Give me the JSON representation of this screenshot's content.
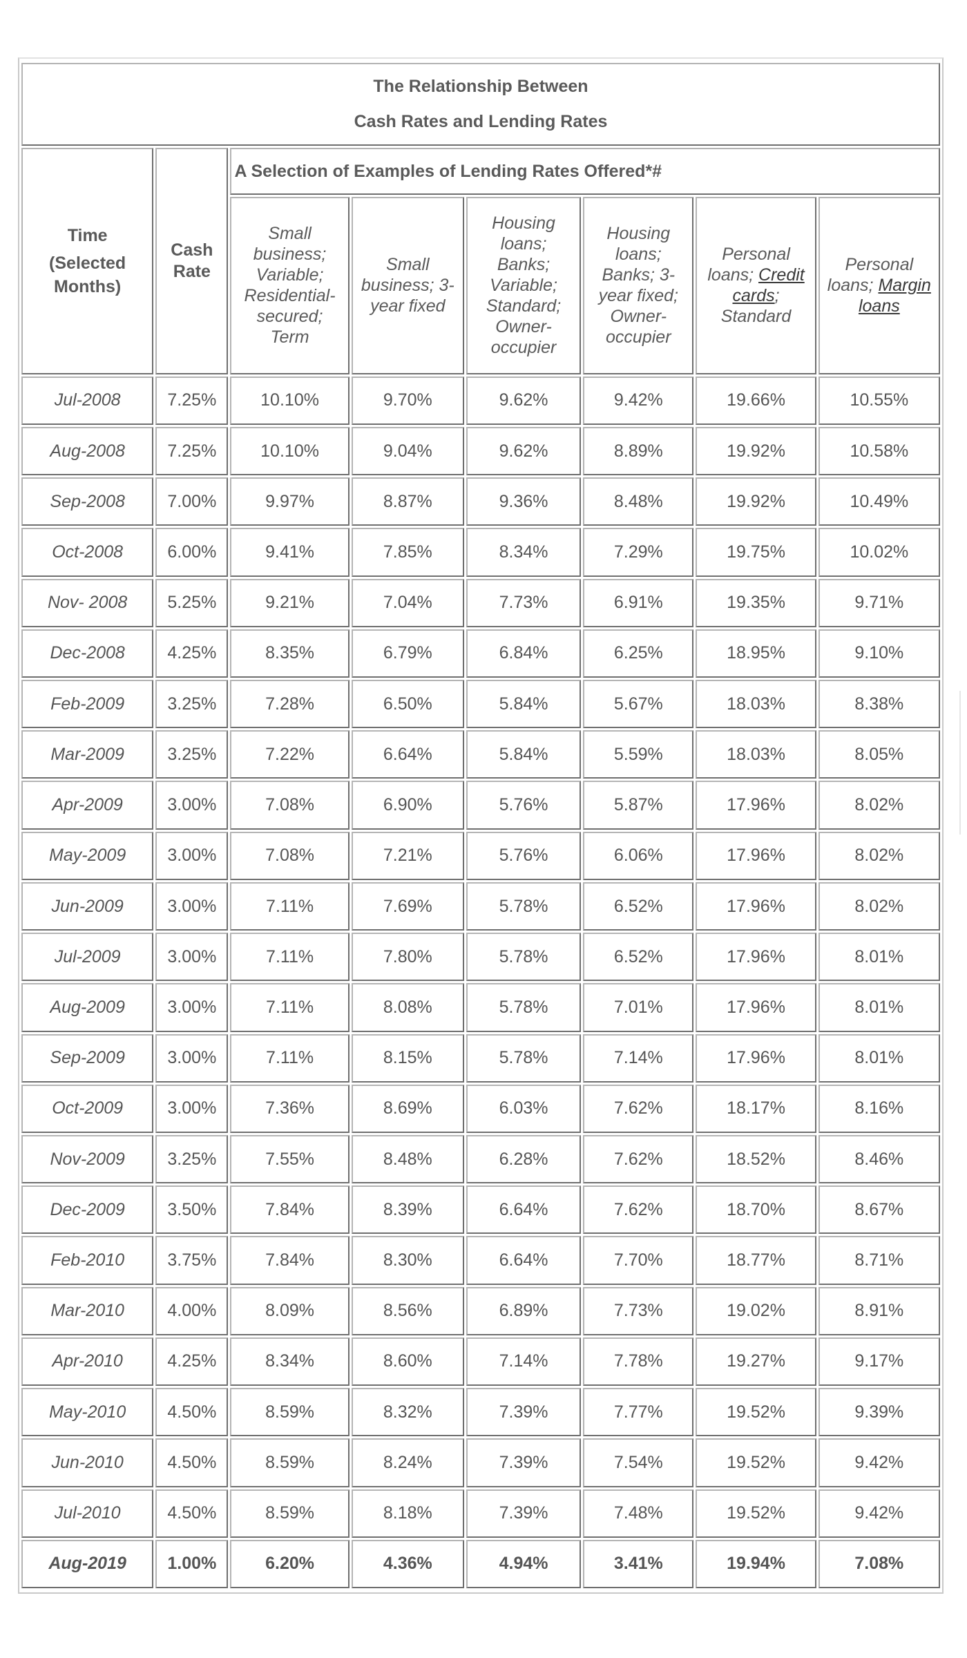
{
  "table": {
    "title_line1": "The Relationship Between",
    "title_line2": "Cash Rates and Lending Rates",
    "time_head": {
      "line1": "Time",
      "line2": "(Selected",
      "line3": "Months)"
    },
    "cash_head": {
      "line1": "Cash",
      "line2": "Rate"
    },
    "group_header": "A Selection of Examples of Lending Rates Offered*#",
    "columns": {
      "c1": [
        "Small",
        "business;",
        "Variable;",
        "Residential-",
        "secured;",
        "Term"
      ],
      "c2": [
        "Small",
        "business; 3-",
        "year fixed"
      ],
      "c3": [
        "Housing",
        "loans;",
        "Banks;",
        "Variable;",
        "Standard;",
        "Owner-",
        "occupier"
      ],
      "c4": [
        "Housing",
        "loans;",
        "Banks; 3-",
        "year fixed;",
        "Owner-",
        "occupier"
      ],
      "c5": {
        "line1": "Personal",
        "line2_prefix": "loans; ",
        "link1": "Credit",
        "link2": "cards",
        "line3_suffix": ";",
        "line4": "Standard"
      },
      "c6": {
        "line1": "Personal",
        "line2_prefix": "loans; ",
        "link1": "Margin",
        "link2": "loans"
      }
    },
    "rows": [
      {
        "month": "Jul-2008",
        "cash": "7.25%",
        "v": [
          "10.10%",
          "9.70%",
          "9.62%",
          "9.42%",
          "19.66%",
          "10.55%"
        ]
      },
      {
        "month": "Aug-2008",
        "cash": "7.25%",
        "v": [
          "10.10%",
          "9.04%",
          "9.62%",
          "8.89%",
          "19.92%",
          "10.58%"
        ]
      },
      {
        "month": "Sep-2008",
        "cash": "7.00%",
        "v": [
          "9.97%",
          "8.87%",
          "9.36%",
          "8.48%",
          "19.92%",
          "10.49%"
        ]
      },
      {
        "month": "Oct-2008",
        "cash": "6.00%",
        "v": [
          "9.41%",
          "7.85%",
          "8.34%",
          "7.29%",
          "19.75%",
          "10.02%"
        ]
      },
      {
        "month": "Nov- 2008",
        "cash": "5.25%",
        "v": [
          "9.21%",
          "7.04%",
          "7.73%",
          "6.91%",
          "19.35%",
          "9.71%"
        ]
      },
      {
        "month": "Dec-2008",
        "cash": "4.25%",
        "v": [
          "8.35%",
          "6.79%",
          "6.84%",
          "6.25%",
          "18.95%",
          "9.10%"
        ]
      },
      {
        "month": "Feb-2009",
        "cash": "3.25%",
        "v": [
          "7.28%",
          "6.50%",
          "5.84%",
          "5.67%",
          "18.03%",
          "8.38%"
        ]
      },
      {
        "month": "Mar-2009",
        "cash": "3.25%",
        "v": [
          "7.22%",
          "6.64%",
          "5.84%",
          "5.59%",
          "18.03%",
          "8.05%"
        ]
      },
      {
        "month": "Apr-2009",
        "cash": "3.00%",
        "v": [
          "7.08%",
          "6.90%",
          "5.76%",
          "5.87%",
          "17.96%",
          "8.02%"
        ]
      },
      {
        "month": "May-2009",
        "cash": "3.00%",
        "v": [
          "7.08%",
          "7.21%",
          "5.76%",
          "6.06%",
          "17.96%",
          "8.02%"
        ]
      },
      {
        "month": "Jun-2009",
        "cash": "3.00%",
        "v": [
          "7.11%",
          "7.69%",
          "5.78%",
          "6.52%",
          "17.96%",
          "8.02%"
        ]
      },
      {
        "month": "Jul-2009",
        "cash": "3.00%",
        "v": [
          "7.11%",
          "7.80%",
          "5.78%",
          "6.52%",
          "17.96%",
          "8.01%"
        ]
      },
      {
        "month": "Aug-2009",
        "cash": "3.00%",
        "v": [
          "7.11%",
          "8.08%",
          "5.78%",
          "7.01%",
          "17.96%",
          "8.01%"
        ]
      },
      {
        "month": "Sep-2009",
        "cash": "3.00%",
        "v": [
          "7.11%",
          "8.15%",
          "5.78%",
          "7.14%",
          "17.96%",
          "8.01%"
        ]
      },
      {
        "month": "Oct-2009",
        "cash": "3.00%",
        "v": [
          "7.36%",
          "8.69%",
          "6.03%",
          "7.62%",
          "18.17%",
          "8.16%"
        ]
      },
      {
        "month": "Nov-2009",
        "cash": "3.25%",
        "v": [
          "7.55%",
          "8.48%",
          "6.28%",
          "7.62%",
          "18.52%",
          "8.46%"
        ]
      },
      {
        "month": "Dec-2009",
        "cash": "3.50%",
        "v": [
          "7.84%",
          "8.39%",
          "6.64%",
          "7.62%",
          "18.70%",
          "8.67%"
        ]
      },
      {
        "month": "Feb-2010",
        "cash": "3.75%",
        "v": [
          "7.84%",
          "8.30%",
          "6.64%",
          "7.70%",
          "18.77%",
          "8.71%"
        ]
      },
      {
        "month": "Mar-2010",
        "cash": "4.00%",
        "v": [
          "8.09%",
          "8.56%",
          "6.89%",
          "7.73%",
          "19.02%",
          "8.91%"
        ]
      },
      {
        "month": "Apr-2010",
        "cash": "4.25%",
        "v": [
          "8.34%",
          "8.60%",
          "7.14%",
          "7.78%",
          "19.27%",
          "9.17%"
        ]
      },
      {
        "month": "May-2010",
        "cash": "4.50%",
        "v": [
          "8.59%",
          "8.32%",
          "7.39%",
          "7.77%",
          "19.52%",
          "9.39%"
        ]
      },
      {
        "month": "Jun-2010",
        "cash": "4.50%",
        "v": [
          "8.59%",
          "8.24%",
          "7.39%",
          "7.54%",
          "19.52%",
          "9.42%"
        ]
      },
      {
        "month": "Jul-2010",
        "cash": "4.50%",
        "v": [
          "8.59%",
          "8.18%",
          "7.39%",
          "7.48%",
          "19.52%",
          "9.42%"
        ]
      },
      {
        "month": "Aug-2019",
        "cash": "1.00%",
        "v": [
          "6.20%",
          "4.36%",
          "4.94%",
          "3.41%",
          "19.94%",
          "7.08%"
        ],
        "highlight": true
      }
    ]
  }
}
